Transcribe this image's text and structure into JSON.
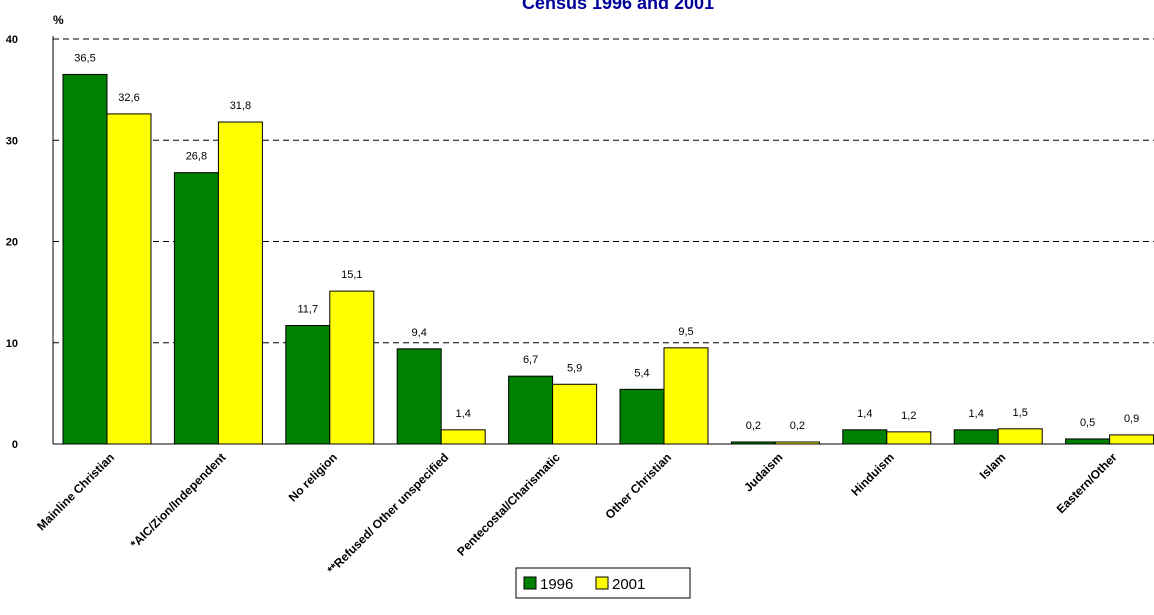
{
  "chart_data": {
    "type": "bar",
    "title": "Census 1996 and 2001",
    "ylabel": "%",
    "xlabel": "",
    "ylim": [
      0,
      40
    ],
    "yticks": [
      0,
      10,
      20,
      30,
      40
    ],
    "grid": true,
    "legend_position": "bottom",
    "categories": [
      "Mainline Christian",
      "*AIC/Zion/Independent",
      "No religion",
      "**Refused/ Other unspecified",
      "Pentecostal/Charismatic",
      "Other Christian",
      "Judaism",
      "Hinduism",
      "Islam",
      "Eastern/Other"
    ],
    "series": [
      {
        "name": "1996",
        "color": "#008000",
        "values": [
          36.5,
          26.8,
          11.7,
          9.4,
          6.7,
          5.4,
          0.2,
          1.4,
          1.4,
          0.5
        ],
        "labels": [
          "36,5",
          "26,8",
          "11,7",
          "9,4",
          "6,7",
          "5,4",
          "0,2",
          "1,4",
          "1,4",
          "0,5"
        ]
      },
      {
        "name": "2001",
        "color": "#FFFF00",
        "values": [
          32.6,
          31.8,
          15.1,
          1.4,
          5.9,
          9.5,
          0.2,
          1.2,
          1.5,
          0.9
        ],
        "labels": [
          "32,6",
          "31,8",
          "15,1",
          "1,4",
          "5,9",
          "9,5",
          "0,2",
          "1,2",
          "1,5",
          "0,9"
        ]
      }
    ]
  }
}
